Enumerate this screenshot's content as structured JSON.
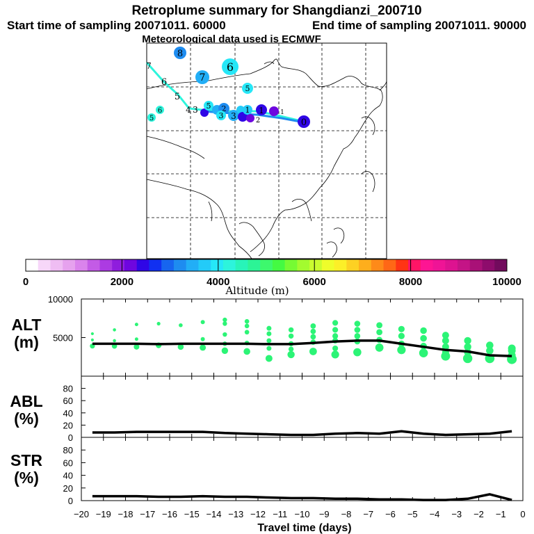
{
  "header": {
    "title": "Retroplume summary for Shangdianzi_200710",
    "subtitle_start": "Start time of sampling 20071011. 60000",
    "subtitle_end": "End time of sampling 20071011. 90000",
    "subtitle_met": "Meteorological data used is ECMWF"
  },
  "colorbar": {
    "label": "Altitude (m)",
    "ticks": [
      "0",
      "2000",
      "4000",
      "6000",
      "8000",
      "10000"
    ],
    "colors": [
      "#ffffff",
      "#f7d7f9",
      "#efbdf3",
      "#e6a2ee",
      "#da83ec",
      "#c35be6",
      "#ac3be2",
      "#8f1ddd",
      "#6e06df",
      "#2f06e6",
      "#1130f1",
      "#1765ef",
      "#1e8cf0",
      "#22aef6",
      "#23cbf8",
      "#26e7f7",
      "#2df4dc",
      "#28f4b9",
      "#2cf496",
      "#3df86d",
      "#44fa42",
      "#76fb33",
      "#a3fb2f",
      "#cafc2f",
      "#eefd2b",
      "#fcef28",
      "#fdd123",
      "#feae1c",
      "#fe8a19",
      "#ff6716",
      "#ff3414",
      "#ff1566",
      "#fd1593",
      "#ef1496",
      "#dd1390",
      "#c41486",
      "#a91177",
      "#8e0c6c",
      "#720b5d"
    ]
  },
  "map": {
    "trajectory_labels": [
      "0",
      "1",
      "2",
      "3",
      "4",
      "5",
      "6",
      "7",
      "8"
    ]
  },
  "chart_data": [
    {
      "type": "line",
      "panel": "ALT",
      "ylabel": "ALT",
      "yunit": "(m)",
      "ylim": [
        0,
        10000
      ],
      "yticks": [
        "10000",
        "5000"
      ],
      "x": [
        -19.5,
        -18.5,
        -17.5,
        -16.5,
        -15.5,
        -14.5,
        -13.5,
        -12.5,
        -11.5,
        -10.5,
        -9.5,
        -8.5,
        -7.5,
        -6.5,
        -5.5,
        -4.5,
        -3.5,
        -2.5,
        -1.5,
        -0.5
      ],
      "values": [
        4200,
        4200,
        4200,
        4150,
        4200,
        4200,
        4200,
        4200,
        4150,
        4150,
        4300,
        4500,
        4600,
        4600,
        4200,
        3800,
        3400,
        3200,
        2700,
        2600
      ],
      "cluster_points": [
        {
          "x": -19.5,
          "y": [
            5500,
            4700,
            3900
          ]
        },
        {
          "x": -18.5,
          "y": [
            6000,
            4600,
            3900
          ]
        },
        {
          "x": -17.5,
          "y": [
            6700,
            4800,
            3800
          ]
        },
        {
          "x": -16.5,
          "y": [
            6800,
            4000
          ]
        },
        {
          "x": -15.5,
          "y": [
            6600,
            3800
          ]
        },
        {
          "x": -14.5,
          "y": [
            7000,
            4800,
            3700
          ]
        },
        {
          "x": -13.5,
          "y": [
            7300,
            6800,
            5400,
            4200,
            3300
          ]
        },
        {
          "x": -12.5,
          "y": [
            7100,
            6500,
            5700,
            4300,
            3200
          ]
        },
        {
          "x": -11.5,
          "y": [
            6200,
            5500,
            4600,
            3600,
            2300
          ]
        },
        {
          "x": -10.5,
          "y": [
            6000,
            5200,
            4200,
            3500,
            2800
          ]
        },
        {
          "x": -9.5,
          "y": [
            6500,
            5800,
            5100,
            4400,
            3200
          ]
        },
        {
          "x": -8.5,
          "y": [
            6900,
            6000,
            5200,
            4600,
            3600,
            2800
          ]
        },
        {
          "x": -7.5,
          "y": [
            6800,
            6000,
            5200,
            4500,
            3100
          ]
        },
        {
          "x": -6.5,
          "y": [
            6600,
            5700,
            4700,
            3700
          ]
        },
        {
          "x": -5.5,
          "y": [
            6100,
            5200,
            4200,
            3400
          ]
        },
        {
          "x": -4.5,
          "y": [
            5900,
            4900,
            3900,
            3000
          ]
        },
        {
          "x": -3.5,
          "y": [
            5300,
            4600,
            3800,
            3100,
            2600
          ]
        },
        {
          "x": -2.5,
          "y": [
            4600,
            3800,
            3100,
            2300
          ]
        },
        {
          "x": -1.5,
          "y": [
            4000,
            3300,
            2300
          ]
        },
        {
          "x": -0.5,
          "y": [
            3600,
            3300,
            2700,
            2200
          ]
        }
      ]
    },
    {
      "type": "line",
      "panel": "ABL",
      "ylabel": "ABL",
      "yunit": "(%)",
      "ylim": [
        0,
        100
      ],
      "yticks": [
        "80",
        "60",
        "40",
        "20",
        "0"
      ],
      "x": [
        -19.5,
        -18.5,
        -17.5,
        -16.5,
        -15.5,
        -14.5,
        -13.5,
        -12.5,
        -11.5,
        -10.5,
        -9.5,
        -8.5,
        -7.5,
        -6.5,
        -5.5,
        -4.5,
        -3.5,
        -2.5,
        -1.5,
        -0.5
      ],
      "values": [
        8,
        8,
        9,
        9,
        9,
        9,
        7,
        6,
        5,
        4,
        4,
        6,
        7,
        6,
        10,
        6,
        4,
        5,
        6,
        10
      ]
    },
    {
      "type": "line",
      "panel": "STR",
      "ylabel": "STR",
      "yunit": "(%)",
      "ylim": [
        0,
        100
      ],
      "yticks": [
        "80",
        "60",
        "40",
        "20",
        "0"
      ],
      "x": [
        -19.5,
        -18.5,
        -17.5,
        -16.5,
        -15.5,
        -14.5,
        -13.5,
        -12.5,
        -11.5,
        -10.5,
        -9.5,
        -8.5,
        -7.5,
        -6.5,
        -5.5,
        -4.5,
        -3.5,
        -2.5,
        -1.5,
        -0.5
      ],
      "values": [
        7,
        7,
        7,
        6,
        6,
        7,
        6,
        6,
        5,
        4,
        4,
        3,
        3,
        2,
        2,
        1,
        1,
        3,
        10,
        1
      ]
    }
  ],
  "xaxis": {
    "label": "Travel time (days)",
    "ticks": [
      "−20",
      "−19",
      "−18",
      "−17",
      "−16",
      "−15",
      "−14",
      "−13",
      "−12",
      "−11",
      "−10",
      "−9",
      "−8",
      "−7",
      "−6",
      "−5",
      "−4",
      "−3",
      "−2",
      "−1",
      "0"
    ]
  }
}
